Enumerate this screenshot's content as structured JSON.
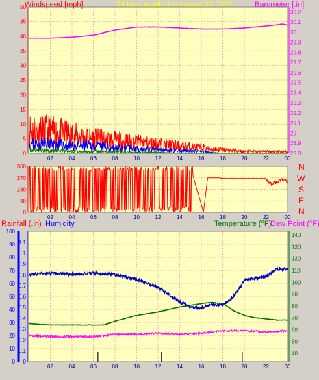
{
  "header": {
    "left": "Windspeed [mph]",
    "center": "24 hour graph day   August 22 2025",
    "right": "Barometer [.in]"
  },
  "bottom_header": {
    "rainfall": "Rainfall (.in)",
    "humidity": "Humidity",
    "temperature": "Temperature (°F)",
    "dewpoint": "Dew Point (°F)"
  },
  "wind_dir_labels": [
    "N",
    "W",
    "S",
    "E",
    "N"
  ],
  "colors": {
    "background": "#d4d0c8",
    "plot_bg": "#ffffc0",
    "grid": "#ffb0a0",
    "wind_gust": "#ff0000",
    "wind_avg": "#0000ff",
    "wind_min": "#008000",
    "barometer": "#ff00ff",
    "wind_dir": "#ff0000",
    "humidity": "#0000c8",
    "temperature": "#007000",
    "dewpoint": "#ff00ff",
    "title": "#ffff00",
    "axis_left_top": "#ff0000",
    "axis_right_top": "#ff00ff",
    "axis_left_bottom": "#0000ff"
  },
  "chart_data": [
    {
      "type": "line",
      "name": "wind-barometer",
      "x_ticks": [
        "02",
        "04",
        "06",
        "08",
        "10",
        "12",
        "14",
        "16",
        "18",
        "20",
        "22",
        "00"
      ],
      "y_left": {
        "label": "Windspeed [mph]",
        "range": [
          0,
          50
        ],
        "ticks": [
          "0",
          "5",
          "10",
          "15",
          "20",
          "25",
          "30",
          "35",
          "40",
          "45",
          "50"
        ]
      },
      "y_right": {
        "label": "Barometer [.in]",
        "range": [
          28.8,
          30.25
        ],
        "ticks": [
          "28.8",
          "28.9",
          "29",
          "29.1",
          "29.2",
          "29.3",
          "29.4",
          "29.5",
          "29.6",
          "29.7",
          "29.8",
          "29.9",
          "30",
          "30.1",
          "30.2"
        ]
      },
      "barometer": [
        [
          0,
          29.94
        ],
        [
          2,
          29.94
        ],
        [
          4,
          29.95
        ],
        [
          6,
          29.97
        ],
        [
          8,
          30.02
        ],
        [
          10,
          30.05
        ],
        [
          12,
          30.05
        ],
        [
          14,
          30.04
        ],
        [
          16,
          30.03
        ],
        [
          18,
          30.03
        ],
        [
          20,
          30.04
        ],
        [
          22,
          30.06
        ],
        [
          23.6,
          30.08
        ],
        [
          24,
          30.07
        ]
      ],
      "wind_gust": [
        [
          0,
          13
        ],
        [
          2,
          12
        ],
        [
          4,
          10
        ],
        [
          6,
          8
        ],
        [
          8,
          7
        ],
        [
          10,
          6
        ],
        [
          12,
          5
        ],
        [
          14,
          4
        ],
        [
          16,
          3
        ],
        [
          18,
          2
        ],
        [
          20,
          1
        ],
        [
          22,
          1
        ],
        [
          24,
          1
        ]
      ],
      "wind_avg": [
        [
          0,
          5
        ],
        [
          2,
          5
        ],
        [
          4,
          4
        ],
        [
          6,
          4
        ],
        [
          8,
          3
        ],
        [
          10,
          2.5
        ],
        [
          12,
          2
        ],
        [
          14,
          1.5
        ],
        [
          16,
          1
        ],
        [
          18,
          0
        ],
        [
          24,
          0
        ]
      ],
      "wind_min": [
        [
          0,
          2
        ],
        [
          2,
          1.5
        ],
        [
          4,
          1
        ],
        [
          6,
          1
        ],
        [
          8,
          1
        ],
        [
          10,
          0.5
        ],
        [
          12,
          0.5
        ],
        [
          14,
          0
        ],
        [
          24,
          0
        ]
      ]
    },
    {
      "type": "line",
      "name": "wind-direction",
      "x_ticks": [
        "02",
        "04",
        "06",
        "08",
        "10",
        "12",
        "14",
        "16",
        "18",
        "20",
        "22",
        "00"
      ],
      "y_left": {
        "range": [
          0,
          360
        ],
        "ticks": [
          "0",
          "90",
          "180",
          "270",
          "360"
        ]
      },
      "segments": [
        [
          0,
          300
        ],
        [
          15.2,
          300
        ],
        [
          16.2,
          0
        ],
        [
          16.6,
          270
        ],
        [
          17.6,
          270
        ],
        [
          18,
          265
        ],
        [
          21,
          265
        ],
        [
          22,
          265
        ],
        [
          22.5,
          220
        ],
        [
          23.5,
          255
        ],
        [
          24,
          240
        ]
      ]
    },
    {
      "type": "line",
      "name": "temp-humidity",
      "x_ticks": [
        "02",
        "04",
        "06",
        "08",
        "10",
        "12",
        "14",
        "16",
        "18",
        "20",
        "22",
        "00"
      ],
      "y_left_humidity": {
        "label": "Humidity",
        "range": [
          0,
          100
        ],
        "ticks": [
          "0",
          "10",
          "20",
          "30",
          "40",
          "50",
          "60",
          "70",
          "80",
          "90",
          "100"
        ]
      },
      "y_left_rain": {
        "label": "Rainfall (.in)",
        "range": [
          0,
          1.2
        ],
        "ticks": [
          "0",
          "0.1",
          "0.2",
          "0.3",
          "0.4",
          "0.5",
          "0.6",
          "0.7",
          "0.8",
          "0.9",
          "1",
          "1.1"
        ]
      },
      "y_right": {
        "label": "Temperature (°F)",
        "range": [
          33,
          143
        ],
        "ticks": [
          "40",
          "50",
          "60",
          "70",
          "80",
          "90",
          "100",
          "110",
          "120",
          "130",
          "140"
        ]
      },
      "humidity": [
        [
          0,
          67
        ],
        [
          2,
          68
        ],
        [
          4,
          67
        ],
        [
          6,
          68
        ],
        [
          8,
          67
        ],
        [
          10,
          63
        ],
        [
          12,
          57
        ],
        [
          14,
          46
        ],
        [
          15,
          42
        ],
        [
          16,
          41
        ],
        [
          17,
          44
        ],
        [
          18,
          43
        ],
        [
          19,
          50
        ],
        [
          20,
          62
        ],
        [
          21,
          64
        ],
        [
          22,
          65
        ],
        [
          23,
          71
        ],
        [
          24,
          71
        ]
      ],
      "temperature": [
        [
          0,
          65
        ],
        [
          2,
          64
        ],
        [
          4,
          64
        ],
        [
          6,
          64
        ],
        [
          7,
          64
        ],
        [
          8,
          67
        ],
        [
          10,
          72
        ],
        [
          12,
          75
        ],
        [
          14,
          79
        ],
        [
          16,
          82
        ],
        [
          17,
          83
        ],
        [
          18,
          82
        ],
        [
          19,
          76
        ],
        [
          20,
          72
        ],
        [
          21,
          70
        ],
        [
          22,
          69
        ],
        [
          23,
          68
        ],
        [
          24,
          68
        ]
      ],
      "dewpoint": [
        [
          0,
          55
        ],
        [
          2,
          54
        ],
        [
          4,
          54
        ],
        [
          6,
          54
        ],
        [
          8,
          56
        ],
        [
          10,
          56
        ],
        [
          12,
          57
        ],
        [
          14,
          56
        ],
        [
          16,
          57
        ],
        [
          18,
          59
        ],
        [
          20,
          59
        ],
        [
          22,
          58
        ],
        [
          24,
          59
        ]
      ]
    }
  ]
}
